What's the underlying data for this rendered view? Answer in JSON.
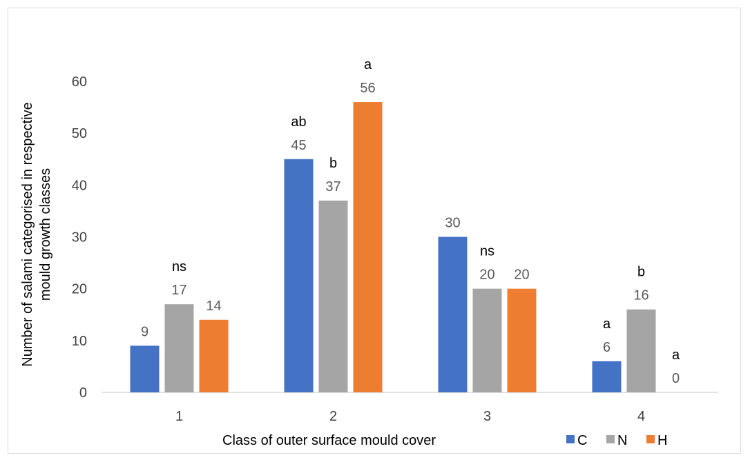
{
  "chart_data": {
    "type": "bar",
    "title": "",
    "xlabel": "Class of outer surface mould  cover",
    "ylabel_lines": [
      "Number  of salami categorised in respective",
      "mould  growth classes"
    ],
    "categories": [
      "1",
      "2",
      "3",
      "4"
    ],
    "ylim": [
      0,
      60
    ],
    "yticks": [
      0,
      10,
      20,
      30,
      40,
      50,
      60
    ],
    "grid": false,
    "legend_position": "bottom-right",
    "series": [
      {
        "name": "C",
        "color": "#4472c4",
        "values": [
          9,
          45,
          30,
          6
        ]
      },
      {
        "name": "N",
        "color": "#a5a5a5",
        "values": [
          17,
          37,
          20,
          16
        ]
      },
      {
        "name": "H",
        "color": "#ed7d31",
        "values": [
          14,
          56,
          20,
          0
        ]
      }
    ],
    "significance_labels": [
      {
        "category": "1",
        "series": "N",
        "text": "ns"
      },
      {
        "category": "2",
        "series": "C",
        "text": "ab"
      },
      {
        "category": "2",
        "series": "N",
        "text": "b"
      },
      {
        "category": "2",
        "series": "H",
        "text": "a"
      },
      {
        "category": "3",
        "series": "N",
        "text": "ns"
      },
      {
        "category": "4",
        "series": "C",
        "text": "a"
      },
      {
        "category": "4",
        "series": "N",
        "text": "b"
      },
      {
        "category": "4",
        "series": "H",
        "text": "a"
      }
    ]
  }
}
